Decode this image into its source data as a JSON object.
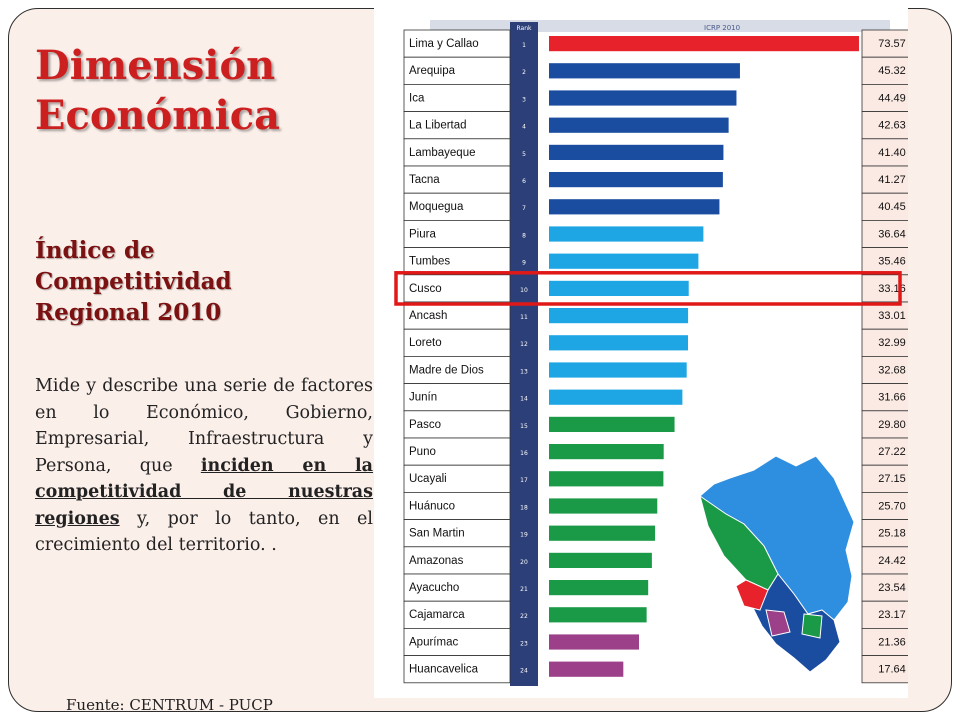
{
  "slide": {
    "title_line1": "Dimensión",
    "title_line2": "Económica",
    "subtitle_line1": "Índice de",
    "subtitle_line2": "Competitividad",
    "subtitle_line3": "Regional 2010",
    "desc_part1": "Mide y describe una serie de factores en lo Económico, Gobierno, Empresarial, Infraestructura y Persona, que ",
    "desc_emphasis": "inciden en la competitividad de nuestras regiones",
    "desc_part2": " y, por lo tanto, en el crecimiento del territorio. .",
    "source": "Fuente: CENTRUM - PUCP",
    "title_color": "#cc1f1f",
    "subtitle_color": "#7b1111",
    "background_color": "#fbefea"
  },
  "chart_data": {
    "type": "bar",
    "orientation": "horizontal",
    "title": "ICRP 2010",
    "rank_header": "Rank",
    "categories": [
      "Lima y Callao",
      "Arequipa",
      "Ica",
      "La Libertad",
      "Lambayeque",
      "Tacna",
      "Moquegua",
      "Piura",
      "Tumbes",
      "Cusco",
      "Ancash",
      "Loreto",
      "Madre de Dios",
      "Junín",
      "Pasco",
      "Puno",
      "Ucayali",
      "Huánuco",
      "San Martin",
      "Amazonas",
      "Ayacucho",
      "Cajamarca",
      "Apurímac",
      "Huancavelica"
    ],
    "ranks": [
      "1",
      "2",
      "3",
      "4",
      "5",
      "6",
      "7",
      "8",
      "9",
      "10",
      "11",
      "12",
      "13",
      "14",
      "15",
      "16",
      "17",
      "18",
      "19",
      "20",
      "21",
      "22",
      "23",
      "24"
    ],
    "values": [
      73.57,
      45.32,
      44.49,
      42.63,
      41.4,
      41.27,
      40.45,
      36.64,
      35.46,
      33.16,
      33.01,
      32.99,
      32.68,
      31.66,
      29.8,
      27.22,
      27.15,
      25.7,
      25.18,
      24.42,
      23.54,
      23.17,
      21.36,
      17.64
    ],
    "value_labels": [
      "73.57",
      "45.32",
      "44.49",
      "42.63",
      "41.40",
      "41.27",
      "40.45",
      "36.64",
      "35.46",
      "33.16",
      "33.01",
      "32.99",
      "32.68",
      "31.66",
      "29.80",
      "27.22",
      "27.15",
      "25.70",
      "25.18",
      "24.42",
      "23.54",
      "23.17",
      "21.36",
      "17.64"
    ],
    "bar_colors": [
      "#e8222b",
      "#1a4da0",
      "#1a4da0",
      "#1a4da0",
      "#1a4da0",
      "#1a4da0",
      "#1a4da0",
      "#1ea6e4",
      "#1ea6e4",
      "#1ea6e4",
      "#1ea6e4",
      "#1ea6e4",
      "#1ea6e4",
      "#1ea6e4",
      "#1a9a47",
      "#1a9a47",
      "#1a9a47",
      "#1a9a47",
      "#1a9a47",
      "#1a9a47",
      "#1a9a47",
      "#1a9a47",
      "#9c4189",
      "#9c4189"
    ],
    "highlight_category": "Cusco",
    "highlight_color": "#e01818",
    "xlim": [
      0,
      75
    ],
    "map_region_colors": [
      "#2e8ee0",
      "#1a4da0",
      "#1a9a47",
      "#9c4189",
      "#e8222b"
    ]
  }
}
